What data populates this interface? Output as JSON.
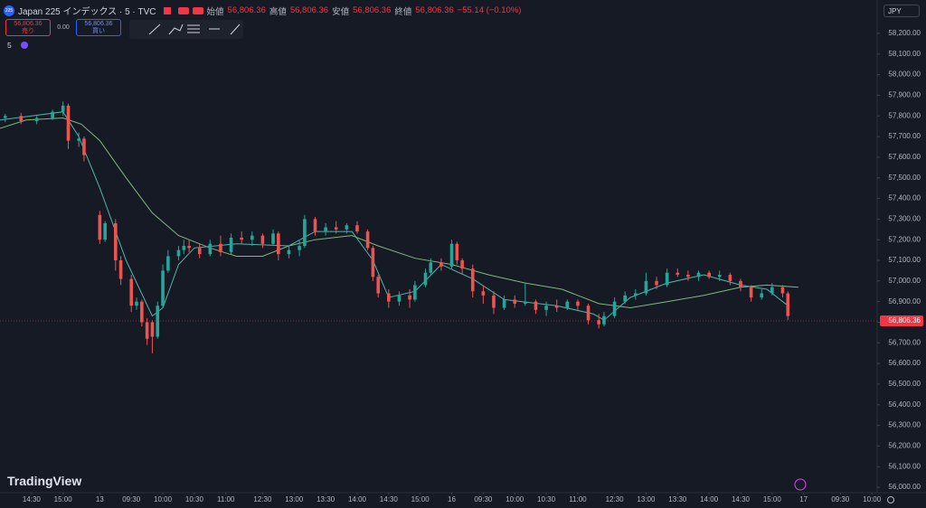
{
  "header": {
    "badge": "225",
    "symbol": "Japan 225 インデックス · 5 · TVC",
    "ohlc": [
      {
        "label": "始値",
        "value": "56,806.36"
      },
      {
        "label": "高値",
        "value": "56,806.36"
      },
      {
        "label": "安値",
        "value": "56,806.36"
      },
      {
        "label": "終値",
        "value": "56,806.36"
      }
    ],
    "change": "−55.14 (−0.10%)"
  },
  "trade": {
    "sell_price": "56,806.36",
    "sell_label": "売り",
    "spread": "0.00",
    "buy_price": "56,806.36",
    "buy_label": "買い"
  },
  "interval": "5",
  "currency": "JPY",
  "logo": "TradingView",
  "chart_data": {
    "type": "candlestick",
    "x": [
      1,
      4,
      7,
      10,
      12,
      13,
      15,
      16,
      19,
      20,
      22,
      23,
      25,
      26,
      27,
      28,
      29,
      30,
      31,
      32,
      34,
      35,
      36,
      38,
      40,
      42,
      44,
      46,
      48,
      50,
      52,
      53,
      55,
      57,
      58,
      60,
      62,
      64,
      66,
      68,
      70,
      71,
      72,
      74,
      76,
      78,
      79,
      81,
      82,
      84,
      86,
      87,
      88,
      90,
      92,
      94,
      96,
      98,
      100,
      102,
      104,
      106,
      108,
      110,
      112,
      114,
      115,
      117,
      119,
      121,
      123,
      125,
      127,
      129,
      131,
      133,
      135,
      137,
      139,
      141,
      143,
      145,
      147,
      149,
      150
    ],
    "open": [
      57790,
      57800,
      57775,
      57790,
      57820,
      57850,
      57680,
      57690,
      57320,
      57200,
      57280,
      57100,
      57010,
      56880,
      56900,
      56800,
      56800,
      56730,
      56880,
      57050,
      57120,
      57150,
      57170,
      57160,
      57130,
      57180,
      57140,
      57210,
      57200,
      57220,
      57180,
      57230,
      57130,
      57150,
      57170,
      57300,
      57240,
      57260,
      57250,
      57270,
      57240,
      57160,
      57020,
      56940,
      56900,
      56930,
      56910,
      56980,
      57040,
      57090,
      57070,
      57180,
      57100,
      57060,
      56950,
      56930,
      56870,
      56910,
      56890,
      56900,
      56860,
      56880,
      56870,
      56900,
      56880,
      56810,
      56790,
      56830,
      56900,
      56930,
      56940,
      57000,
      56980,
      57040,
      57030,
      57020,
      57040,
      57020,
      57030,
      57000,
      56970,
      56920,
      56940,
      56970,
      56940
    ],
    "high": [
      57810,
      57815,
      57800,
      57830,
      57870,
      57860,
      57720,
      57700,
      57340,
      57290,
      57300,
      57120,
      57030,
      56920,
      56910,
      56820,
      56810,
      56900,
      57080,
      57150,
      57170,
      57200,
      57200,
      57180,
      57200,
      57220,
      57230,
      57240,
      57240,
      57230,
      57250,
      57240,
      57170,
      57200,
      57320,
      57310,
      57280,
      57290,
      57280,
      57290,
      57250,
      57170,
      57030,
      56960,
      56950,
      56960,
      57000,
      57060,
      57110,
      57110,
      57200,
      57190,
      57110,
      57080,
      56980,
      56950,
      56930,
      56930,
      56990,
      56910,
      56900,
      56910,
      56910,
      56910,
      56890,
      56840,
      56850,
      56920,
      56950,
      56960,
      57040,
      57020,
      57060,
      57060,
      57050,
      57050,
      57050,
      57050,
      57040,
      57010,
      56980,
      56960,
      56990,
      56980,
      56950
    ],
    "low": [
      57770,
      57760,
      57760,
      57780,
      57800,
      57640,
      57650,
      57580,
      57180,
      57190,
      57050,
      56980,
      56850,
      56860,
      56780,
      56690,
      56650,
      56720,
      56870,
      57040,
      57100,
      57130,
      57140,
      57110,
      57120,
      57120,
      57130,
      57180,
      57170,
      57160,
      57170,
      57100,
      57110,
      57120,
      57160,
      57220,
      57220,
      57230,
      57230,
      57230,
      57150,
      57000,
      56920,
      56870,
      56880,
      56870,
      56900,
      56970,
      57030,
      57050,
      57060,
      57080,
      57030,
      56920,
      56890,
      56840,
      56860,
      56870,
      56880,
      56840,
      56830,
      56850,
      56860,
      56860,
      56790,
      56770,
      56780,
      56820,
      56890,
      56910,
      56930,
      56960,
      56970,
      57020,
      57000,
      57000,
      57010,
      57000,
      56980,
      56950,
      56900,
      56910,
      56930,
      56920,
      56810
    ],
    "close": [
      57800,
      57775,
      57790,
      57820,
      57850,
      57680,
      57690,
      57610,
      57200,
      57280,
      57100,
      57010,
      56880,
      56900,
      56800,
      56720,
      56730,
      56880,
      57050,
      57120,
      57150,
      57170,
      57160,
      57130,
      57180,
      57140,
      57210,
      57200,
      57220,
      57180,
      57230,
      57130,
      57150,
      57170,
      57300,
      57240,
      57260,
      57250,
      57270,
      57240,
      57160,
      57020,
      56940,
      56900,
      56930,
      56910,
      56980,
      57040,
      57090,
      57070,
      57180,
      57100,
      57060,
      56950,
      56930,
      56870,
      56910,
      56890,
      56900,
      56860,
      56880,
      56870,
      56900,
      56880,
      56810,
      56790,
      56830,
      56900,
      56930,
      56940,
      57000,
      56980,
      57040,
      57030,
      57020,
      57040,
      57020,
      57030,
      57000,
      56970,
      56920,
      56940,
      56970,
      56940,
      56830
    ],
    "up_color": "#26a69a",
    "down_color": "#ef5350",
    "lines": [
      {
        "color": "#7fb77e",
        "x": [
          0,
          5,
          12,
          15.5,
          19,
          24,
          29,
          34,
          40,
          45,
          50,
          55,
          60,
          67,
          72,
          79,
          86,
          93,
          100,
          107,
          114,
          120,
          127,
          134,
          141,
          146,
          152
        ],
        "values": [
          57740,
          57780,
          57790,
          57760,
          57680,
          57500,
          57330,
          57220,
          57160,
          57120,
          57120,
          57170,
          57200,
          57220,
          57170,
          57110,
          57080,
          57030,
          56990,
          56960,
          56890,
          56870,
          56900,
          56930,
          56970,
          56980,
          56970
        ]
      },
      {
        "color": "#4db6ac",
        "x": [
          0,
          12,
          15,
          19,
          24,
          29,
          31,
          34,
          37,
          45,
          55,
          60,
          67,
          71,
          74,
          79,
          84,
          90,
          96,
          106,
          113,
          115,
          120,
          127,
          134,
          141,
          146,
          150
        ],
        "values": [
          57780,
          57820,
          57700,
          57450,
          57100,
          56830,
          56870,
          57080,
          57160,
          57180,
          57170,
          57240,
          57240,
          57100,
          56920,
          56950,
          57080,
          57010,
          56910,
          56880,
          56840,
          56810,
          56920,
          56990,
          57030,
          56980,
          56960,
          56880
        ]
      }
    ],
    "last_price": 56806.36,
    "last_price_label": "56,806.36",
    "last_price_color": "#f23645",
    "xlim": [
      0,
      167
    ],
    "xticks": [
      {
        "value": 6,
        "label": "14:30"
      },
      {
        "value": 12,
        "label": "15:00"
      },
      {
        "value": 19,
        "label": "13"
      },
      {
        "value": 25,
        "label": "09:30"
      },
      {
        "value": 31,
        "label": "10:00"
      },
      {
        "value": 37,
        "label": "10:30"
      },
      {
        "value": 43,
        "label": "11:00"
      },
      {
        "value": 50,
        "label": "12:30"
      },
      {
        "value": 56,
        "label": "13:00"
      },
      {
        "value": 62,
        "label": "13:30"
      },
      {
        "value": 68,
        "label": "14:00"
      },
      {
        "value": 74,
        "label": "14:30"
      },
      {
        "value": 80,
        "label": "15:00"
      },
      {
        "value": 86,
        "label": "16"
      },
      {
        "value": 92,
        "label": "09:30"
      },
      {
        "value": 98,
        "label": "10:00"
      },
      {
        "value": 104,
        "label": "10:30"
      },
      {
        "value": 110,
        "label": "11:00"
      },
      {
        "value": 117,
        "label": "12:30"
      },
      {
        "value": 123,
        "label": "13:00"
      },
      {
        "value": 129,
        "label": "13:30"
      },
      {
        "value": 135,
        "label": "14:00"
      },
      {
        "value": 141,
        "label": "14:30"
      },
      {
        "value": 147,
        "label": "15:00"
      },
      {
        "value": 153,
        "label": "17"
      },
      {
        "value": 160,
        "label": "09:30"
      },
      {
        "value": 166,
        "label": "10:00"
      }
    ],
    "ylim": [
      55974,
      58362
    ],
    "yticks": [
      {
        "value": 56000,
        "label": "56,000.00"
      },
      {
        "value": 56100,
        "label": "56,100.00"
      },
      {
        "value": 56200,
        "label": "56,200.00"
      },
      {
        "value": 56300,
        "label": "56,300.00"
      },
      {
        "value": 56400,
        "label": "56,400.00"
      },
      {
        "value": 56500,
        "label": "56,500.00"
      },
      {
        "value": 56600,
        "label": "56,600.00"
      },
      {
        "value": 56700,
        "label": "56,700.00"
      },
      {
        "value": 56800,
        "label": "56,800.00"
      },
      {
        "value": 56900,
        "label": "56,900.00"
      },
      {
        "value": 57000,
        "label": "57,000.00"
      },
      {
        "value": 57100,
        "label": "57,100.00"
      },
      {
        "value": 57200,
        "label": "57,200.00"
      },
      {
        "value": 57300,
        "label": "57,300.00"
      },
      {
        "value": 57400,
        "label": "57,400.00"
      },
      {
        "value": 57500,
        "label": "57,500.00"
      },
      {
        "value": 57600,
        "label": "57,600.00"
      },
      {
        "value": 57700,
        "label": "57,700.00"
      },
      {
        "value": 57800,
        "label": "57,800.00"
      },
      {
        "value": 57900,
        "label": "57,900.00"
      },
      {
        "value": 58000,
        "label": "58,000.00"
      },
      {
        "value": 58100,
        "label": "58,100.00"
      },
      {
        "value": 58200,
        "label": "58,200.00"
      }
    ],
    "grid": false
  }
}
